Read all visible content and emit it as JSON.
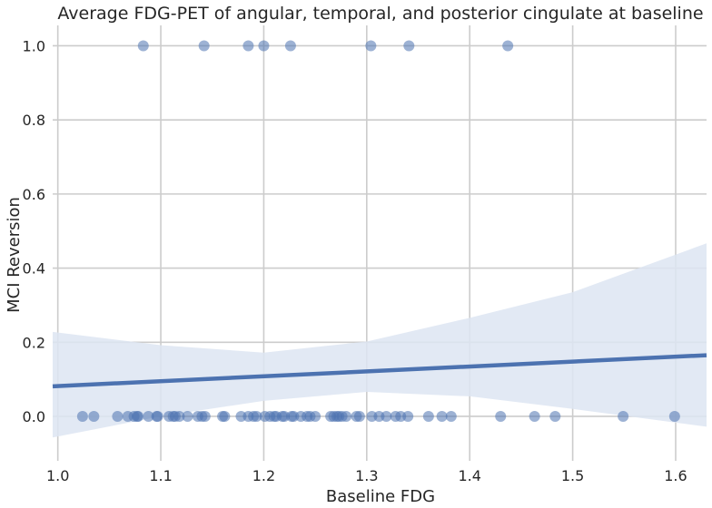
{
  "chart_data": {
    "type": "scatter",
    "title": "Average FDG-PET of angular, temporal, and posterior cingulate at baseline",
    "xlabel": "Baseline FDG",
    "ylabel": "MCI Reversion",
    "xlim": [
      0.995,
      1.63
    ],
    "ylim": [
      -0.12,
      1.055
    ],
    "xticks": [
      "1.0",
      "1.1",
      "1.2",
      "1.3",
      "1.4",
      "1.5",
      "1.6"
    ],
    "yticks": [
      "0.0",
      "0.2",
      "0.4",
      "0.6",
      "0.8",
      "1.0"
    ],
    "grid": true,
    "colors": {
      "points": "#4c72b0",
      "line": "#4c72b0",
      "band": "#dde5f2",
      "grid": "#cccccc",
      "text": "#262626",
      "background": "#ffffff"
    },
    "points": [
      {
        "x": 1.083,
        "y": 1
      },
      {
        "x": 1.142,
        "y": 1
      },
      {
        "x": 1.185,
        "y": 1
      },
      {
        "x": 1.2,
        "y": 1
      },
      {
        "x": 1.226,
        "y": 1
      },
      {
        "x": 1.304,
        "y": 1
      },
      {
        "x": 1.341,
        "y": 1
      },
      {
        "x": 1.437,
        "y": 1
      },
      {
        "x": 1.024,
        "y": 0
      },
      {
        "x": 1.035,
        "y": 0
      },
      {
        "x": 1.058,
        "y": 0
      },
      {
        "x": 1.068,
        "y": 0
      },
      {
        "x": 1.074,
        "y": 0
      },
      {
        "x": 1.077,
        "y": 0
      },
      {
        "x": 1.078,
        "y": 0
      },
      {
        "x": 1.088,
        "y": 0
      },
      {
        "x": 1.096,
        "y": 0
      },
      {
        "x": 1.097,
        "y": 0
      },
      {
        "x": 1.108,
        "y": 0
      },
      {
        "x": 1.112,
        "y": 0
      },
      {
        "x": 1.114,
        "y": 0
      },
      {
        "x": 1.118,
        "y": 0
      },
      {
        "x": 1.126,
        "y": 0
      },
      {
        "x": 1.136,
        "y": 0
      },
      {
        "x": 1.14,
        "y": 0
      },
      {
        "x": 1.143,
        "y": 0
      },
      {
        "x": 1.16,
        "y": 0
      },
      {
        "x": 1.162,
        "y": 0
      },
      {
        "x": 1.178,
        "y": 0
      },
      {
        "x": 1.185,
        "y": 0
      },
      {
        "x": 1.19,
        "y": 0
      },
      {
        "x": 1.193,
        "y": 0
      },
      {
        "x": 1.201,
        "y": 0
      },
      {
        "x": 1.206,
        "y": 0
      },
      {
        "x": 1.21,
        "y": 0
      },
      {
        "x": 1.212,
        "y": 0
      },
      {
        "x": 1.218,
        "y": 0
      },
      {
        "x": 1.22,
        "y": 0
      },
      {
        "x": 1.227,
        "y": 0
      },
      {
        "x": 1.229,
        "y": 0
      },
      {
        "x": 1.236,
        "y": 0
      },
      {
        "x": 1.242,
        "y": 0
      },
      {
        "x": 1.245,
        "y": 0
      },
      {
        "x": 1.25,
        "y": 0
      },
      {
        "x": 1.265,
        "y": 0
      },
      {
        "x": 1.268,
        "y": 0
      },
      {
        "x": 1.271,
        "y": 0
      },
      {
        "x": 1.273,
        "y": 0
      },
      {
        "x": 1.276,
        "y": 0
      },
      {
        "x": 1.28,
        "y": 0
      },
      {
        "x": 1.29,
        "y": 0
      },
      {
        "x": 1.293,
        "y": 0
      },
      {
        "x": 1.305,
        "y": 0
      },
      {
        "x": 1.312,
        "y": 0
      },
      {
        "x": 1.319,
        "y": 0
      },
      {
        "x": 1.328,
        "y": 0
      },
      {
        "x": 1.333,
        "y": 0
      },
      {
        "x": 1.34,
        "y": 0
      },
      {
        "x": 1.36,
        "y": 0
      },
      {
        "x": 1.373,
        "y": 0
      },
      {
        "x": 1.382,
        "y": 0
      },
      {
        "x": 1.43,
        "y": 0
      },
      {
        "x": 1.463,
        "y": 0
      },
      {
        "x": 1.483,
        "y": 0
      },
      {
        "x": 1.549,
        "y": 0
      },
      {
        "x": 1.599,
        "y": 0
      }
    ],
    "regression": {
      "line": [
        [
          0.995,
          0.081
        ],
        [
          1.63,
          0.165
        ]
      ],
      "ci_upper": [
        [
          0.995,
          0.228
        ],
        [
          1.1,
          0.192
        ],
        [
          1.2,
          0.172
        ],
        [
          1.3,
          0.202
        ],
        [
          1.4,
          0.266
        ],
        [
          1.5,
          0.335
        ],
        [
          1.63,
          0.467
        ]
      ],
      "ci_lower": [
        [
          0.995,
          -0.057
        ],
        [
          1.1,
          0.0
        ],
        [
          1.2,
          0.042
        ],
        [
          1.3,
          0.066
        ],
        [
          1.4,
          0.054
        ],
        [
          1.5,
          0.02
        ],
        [
          1.63,
          -0.028
        ]
      ]
    }
  }
}
